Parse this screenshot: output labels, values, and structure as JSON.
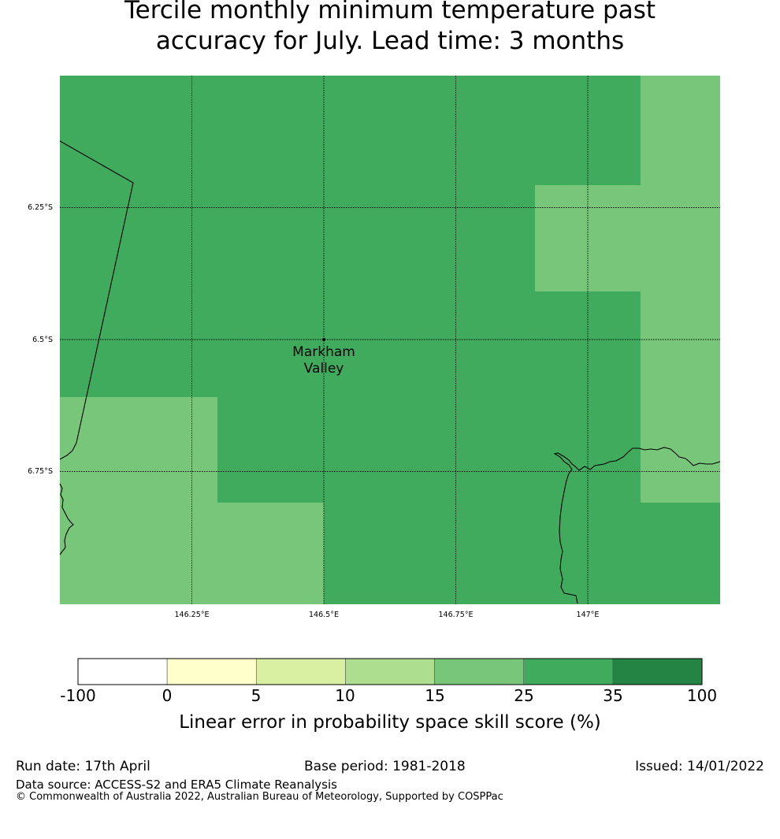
{
  "title": {
    "line1": "Tercile monthly minimum temperature past",
    "line2": "accuracy for July. Lead time: 3 months"
  },
  "map": {
    "lon_labels": [
      "146.25°E",
      "146.5°E",
      "146.75°E",
      "147°E"
    ],
    "lat_labels": [
      "6.25°S",
      "6.5°S",
      "6.75°S"
    ],
    "place": {
      "name_line1": "Markham",
      "name_line2": "Valley"
    },
    "colors": {
      "cat_25_35": "#41ab5d",
      "cat_15_25": "#78c679"
    },
    "grid_skill_category": [
      [
        "25-35",
        "25-35",
        "25-35",
        "25-35",
        "25-35",
        "15-25"
      ],
      [
        "25-35",
        "25-35",
        "25-35",
        "25-35",
        "15-25",
        "15-25"
      ],
      [
        "25-35",
        "25-35",
        "25-35",
        "25-35",
        "25-35",
        "15-25"
      ],
      [
        "15-25",
        "25-35",
        "25-35",
        "25-35",
        "25-35",
        "15-25"
      ],
      [
        "15-25",
        "15-25",
        "25-35",
        "25-35",
        "25-35",
        "25-35"
      ]
    ]
  },
  "colorbar": {
    "ticks": [
      "-100",
      "0",
      "5",
      "10",
      "15",
      "25",
      "35",
      "100"
    ],
    "colors": [
      "#ffffff",
      "#ffffcc",
      "#d9f0a3",
      "#addd8e",
      "#78c679",
      "#41ab5d",
      "#238443"
    ],
    "label": "Linear error in probability space skill score (%)"
  },
  "footer": {
    "run_date": "Run date: 17th April",
    "base_period": "Base period: 1981-2018",
    "issued": "Issued: 14/01/2022",
    "data_source": "Data source: ACCESS-S2 and ERA5 Climate Reanalysis",
    "copyright": "© Commonwealth of Australia 2022, Australian Bureau of Meteorology, Supported by COSPPac"
  }
}
